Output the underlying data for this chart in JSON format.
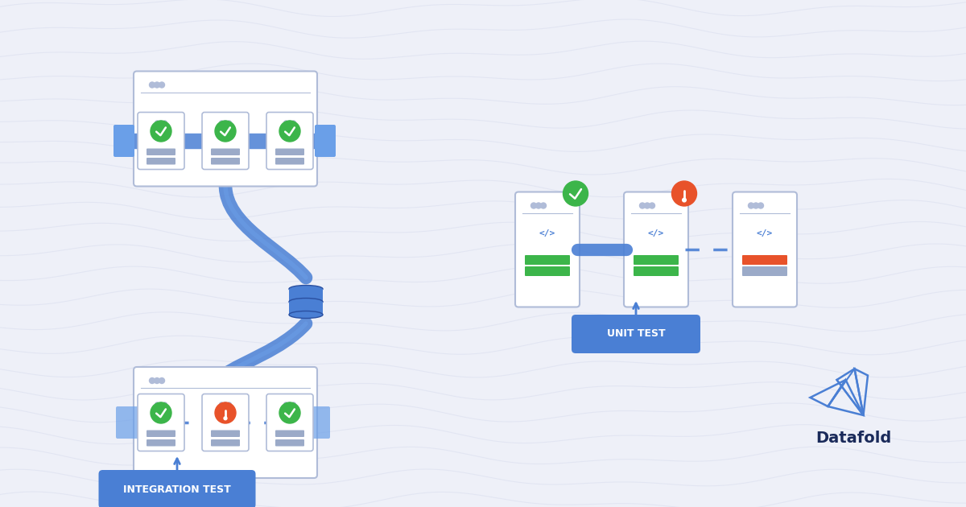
{
  "bg_color": "#eef0f8",
  "bg_wave_color": "#dde1f0",
  "blue_main": "#4a7fd4",
  "blue_light": "#6a9fe8",
  "blue_dark": "#2a4fa0",
  "green_check": "#3cb54a",
  "orange_warn": "#e8522a",
  "white": "#ffffff",
  "card_border": "#b0bcd8",
  "card_bg": "#ffffff",
  "label_bg": "#4a7fd4",
  "label_text": "#ffffff",
  "datafold_text": "#1a2a5a",
  "integration_label": "INTEGRATION TEST",
  "unit_label": "UNIT TEST",
  "datafold_label": "Datafold",
  "text_bar_color": "#9baac8",
  "green_bar": "#3cb54a",
  "orange_bar": "#e8522a"
}
